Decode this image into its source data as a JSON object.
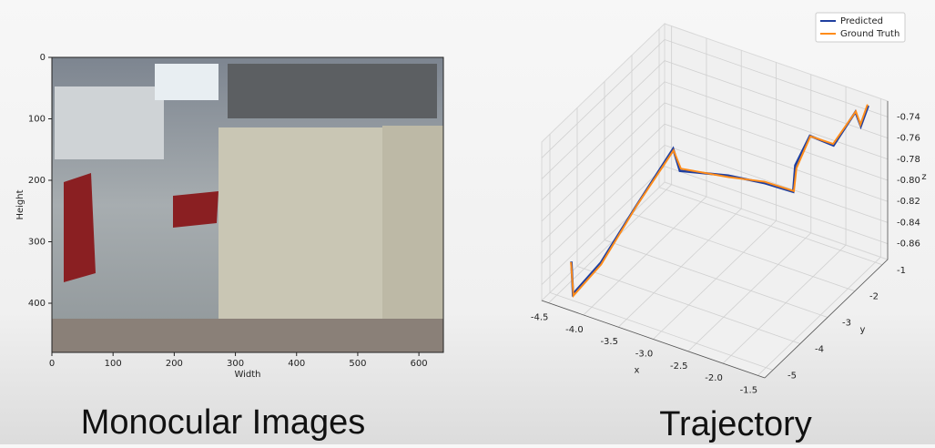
{
  "chart_data": [
    {
      "type": "image",
      "xlabel": "Width",
      "ylabel": "Height",
      "xlim": [
        0,
        640
      ],
      "ylim": [
        480,
        0
      ],
      "xticks": [
        0,
        100,
        200,
        300,
        400,
        500,
        600
      ],
      "yticks": [
        0,
        100,
        200,
        300,
        400
      ]
    },
    {
      "type": "line3d",
      "xlabel": "x",
      "ylabel": "y",
      "zlabel": "z",
      "xlim": [
        -4.6,
        -1.4
      ],
      "ylim": [
        -5.3,
        -0.8
      ],
      "zlim": [
        -0.875,
        -0.725
      ],
      "xticks": [
        -4.5,
        {
          "value": -4,
          "label": "-4.0"
        },
        -3.5,
        {
          "value": -3,
          "label": "-3.0"
        },
        -2.5,
        {
          "value": -2,
          "label": "-2.0"
        },
        -1.5
      ],
      "yticks": [
        -1,
        -2,
        -3,
        -4,
        -5
      ],
      "zticks": [
        -0.74,
        -0.76,
        -0.78,
        {
          "value": -0.8,
          "label": "-0.80"
        },
        -0.82,
        -0.84,
        -0.86
      ],
      "legend": "upper right",
      "series": [
        {
          "name": "Predicted",
          "color": "#1f3f9f",
          "x": [
            -4.39,
            -4.19,
            -4.02,
            -3.77,
            -3.51,
            -3.44,
            -2.81,
            -2.36,
            -2.05,
            -2.11,
            -1.99,
            -1.82,
            -1.69,
            -1.64,
            -1.6
          ],
          "y": [
            -4.75,
            -5.2,
            -4.62,
            -3.96,
            -3.27,
            -3.2,
            -3.04,
            -2.84,
            -2.6,
            -2.37,
            -2.14,
            -1.71,
            -1.24,
            -1.17,
            -1.0
          ],
          "z": [
            -0.847,
            -0.862,
            -0.843,
            -0.8,
            -0.757,
            -0.778,
            -0.772,
            -0.774,
            -0.781,
            -0.763,
            -0.738,
            -0.754,
            -0.731,
            -0.745,
            -0.729
          ]
        },
        {
          "name": "Ground Truth",
          "color": "#ff8c1a",
          "x": [
            -4.4,
            -4.18,
            -4.01,
            -3.76,
            -3.5,
            -3.43,
            -2.8,
            -2.37,
            -2.04,
            -2.09,
            -1.98,
            -1.83,
            -1.68,
            -1.65,
            -1.61
          ],
          "y": [
            -4.74,
            -5.21,
            -4.63,
            -3.95,
            -3.28,
            -3.19,
            -3.05,
            -2.83,
            -2.6,
            -2.38,
            -2.15,
            -1.7,
            -1.25,
            -1.16,
            -1.0
          ],
          "z": [
            -0.848,
            -0.863,
            -0.844,
            -0.799,
            -0.758,
            -0.776,
            -0.773,
            -0.773,
            -0.78,
            -0.765,
            -0.738,
            -0.753,
            -0.73,
            -0.744,
            -0.728
          ]
        }
      ]
    }
  ],
  "captions": [
    "Monocular Images",
    "Trajectory"
  ]
}
